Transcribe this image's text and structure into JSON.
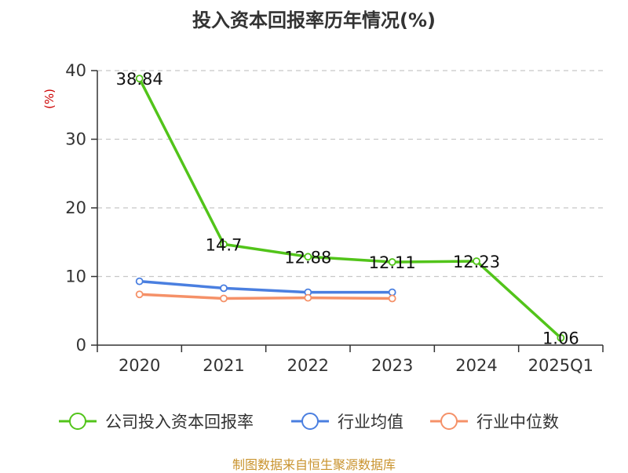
{
  "chart_data": {
    "type": "line",
    "title": "投入资本回报率历年情况(%)",
    "ylabel": "(%)",
    "xlabel": "",
    "ylim": [
      0,
      40
    ],
    "yticks": [
      0,
      10,
      20,
      30,
      40
    ],
    "categories": [
      "2020",
      "2021",
      "2022",
      "2023",
      "2024",
      "2025Q1"
    ],
    "series": [
      {
        "name": "公司投入资本回报率",
        "color": "#52c41a",
        "values": [
          38.84,
          14.7,
          12.88,
          12.11,
          12.23,
          1.06
        ],
        "labels": [
          "38.84",
          "14.7",
          "12.88",
          "12.11",
          "12.23",
          "1.06"
        ]
      },
      {
        "name": "行业均值",
        "color": "#4a7fe0",
        "values": [
          9.3,
          8.3,
          7.7,
          7.7,
          null,
          null
        ]
      },
      {
        "name": "行业中位数",
        "color": "#f59168",
        "values": [
          7.4,
          6.8,
          6.9,
          6.8,
          null,
          null
        ]
      }
    ],
    "grid": true,
    "legend_position": "bottom"
  },
  "source": "制图数据来自恒生聚源数据库"
}
